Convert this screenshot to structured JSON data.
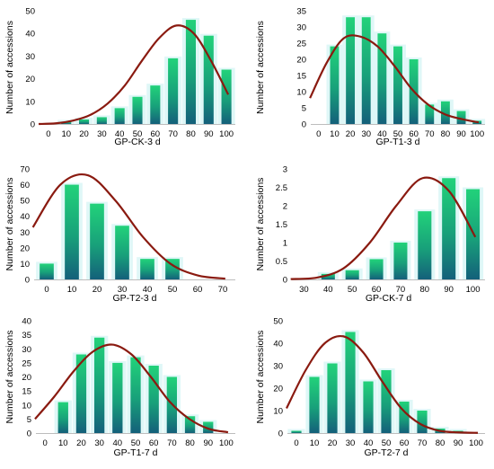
{
  "colors": {
    "bar_top": "#22d27a",
    "bar_bottom": "#14607a",
    "bar_glow": "#dff7f7",
    "curve": "#8a1a10",
    "axis": "#bdbdbd"
  },
  "chart_data": [
    {
      "type": "bar",
      "xlabel": "GP-CK-3 d",
      "ylabel": "Number of accessions",
      "categories": [
        "0",
        "10",
        "20",
        "30",
        "40",
        "50",
        "60",
        "70",
        "80",
        "90",
        "100"
      ],
      "values": [
        0,
        1,
        2,
        3,
        7,
        12,
        17,
        29,
        46,
        39,
        24
      ],
      "curve": [
        0,
        0.3,
        1.5,
        4,
        9,
        17,
        28,
        38,
        43.5,
        40,
        28,
        13
      ],
      "ylim": [
        0,
        50
      ],
      "yticks": [
        0,
        10,
        20,
        30,
        40,
        50
      ]
    },
    {
      "type": "bar",
      "xlabel": "GP-T1-3 d",
      "ylabel": "Number of accessions",
      "categories": [
        "0",
        "10",
        "20",
        "30",
        "40",
        "50",
        "60",
        "70",
        "80",
        "90",
        "100"
      ],
      "values": [
        0,
        24,
        33,
        33,
        28,
        24,
        20,
        6,
        7,
        4,
        1
      ],
      "curve": [
        8,
        19,
        26.5,
        27,
        24,
        18,
        11,
        6,
        3,
        1.5,
        0.5
      ],
      "ylim": [
        0,
        35
      ],
      "yticks": [
        0,
        5,
        10,
        15,
        20,
        25,
        30,
        35
      ]
    },
    {
      "type": "bar",
      "xlabel": "GP-T2-3 d",
      "ylabel": "Number of accessions",
      "categories": [
        "0",
        "10",
        "20",
        "30",
        "40",
        "50",
        "60",
        "70"
      ],
      "values": [
        10,
        60,
        48,
        34,
        13,
        13,
        0,
        0
      ],
      "curve": [
        33,
        60,
        66,
        50,
        27,
        10,
        2.5,
        0.5
      ],
      "ylim": [
        0,
        70
      ],
      "yticks": [
        0,
        10,
        20,
        30,
        40,
        50,
        60,
        70
      ]
    },
    {
      "type": "bar",
      "xlabel": "GP-CK-7 d",
      "ylabel": "Number of accessions",
      "categories": [
        "30",
        "40",
        "50",
        "60",
        "70",
        "80",
        "90",
        "100"
      ],
      "values": [
        0,
        0.15,
        0.25,
        0.55,
        1.0,
        1.85,
        2.75,
        2.45
      ],
      "curve": [
        0.01,
        0.05,
        0.3,
        1.0,
        2.0,
        2.75,
        2.4,
        1.15
      ],
      "ylim": [
        0,
        3
      ],
      "yticks": [
        0,
        0.5,
        1,
        1.5,
        2,
        2.5,
        3
      ]
    },
    {
      "type": "bar",
      "xlabel": "GP-T1-7 d",
      "ylabel": "Number of accessions",
      "categories": [
        "0",
        "10",
        "20",
        "30",
        "40",
        "50",
        "60",
        "70",
        "80",
        "90",
        "100"
      ],
      "values": [
        0,
        11,
        28,
        34,
        25,
        27,
        24,
        20,
        6,
        4,
        0
      ],
      "curve": [
        5,
        13,
        22,
        29,
        31.5,
        28,
        20,
        11,
        5,
        1.5,
        0.3
      ],
      "ylim": [
        0,
        40
      ],
      "yticks": [
        0,
        5,
        10,
        15,
        20,
        25,
        30,
        35,
        40
      ]
    },
    {
      "type": "bar",
      "xlabel": "GP-T2-7 d",
      "ylabel": "Number of accessions",
      "categories": [
        "0",
        "10",
        "20",
        "30",
        "40",
        "50",
        "60",
        "70",
        "80",
        "90",
        "100"
      ],
      "values": [
        1,
        25,
        31,
        45,
        23,
        28,
        14,
        10,
        2,
        1,
        0
      ],
      "curve": [
        11,
        28,
        40,
        43,
        36,
        23,
        11,
        4,
        1,
        0.3,
        0.1
      ],
      "ylim": [
        0,
        50
      ],
      "yticks": [
        0,
        10,
        20,
        30,
        40,
        50
      ]
    }
  ]
}
